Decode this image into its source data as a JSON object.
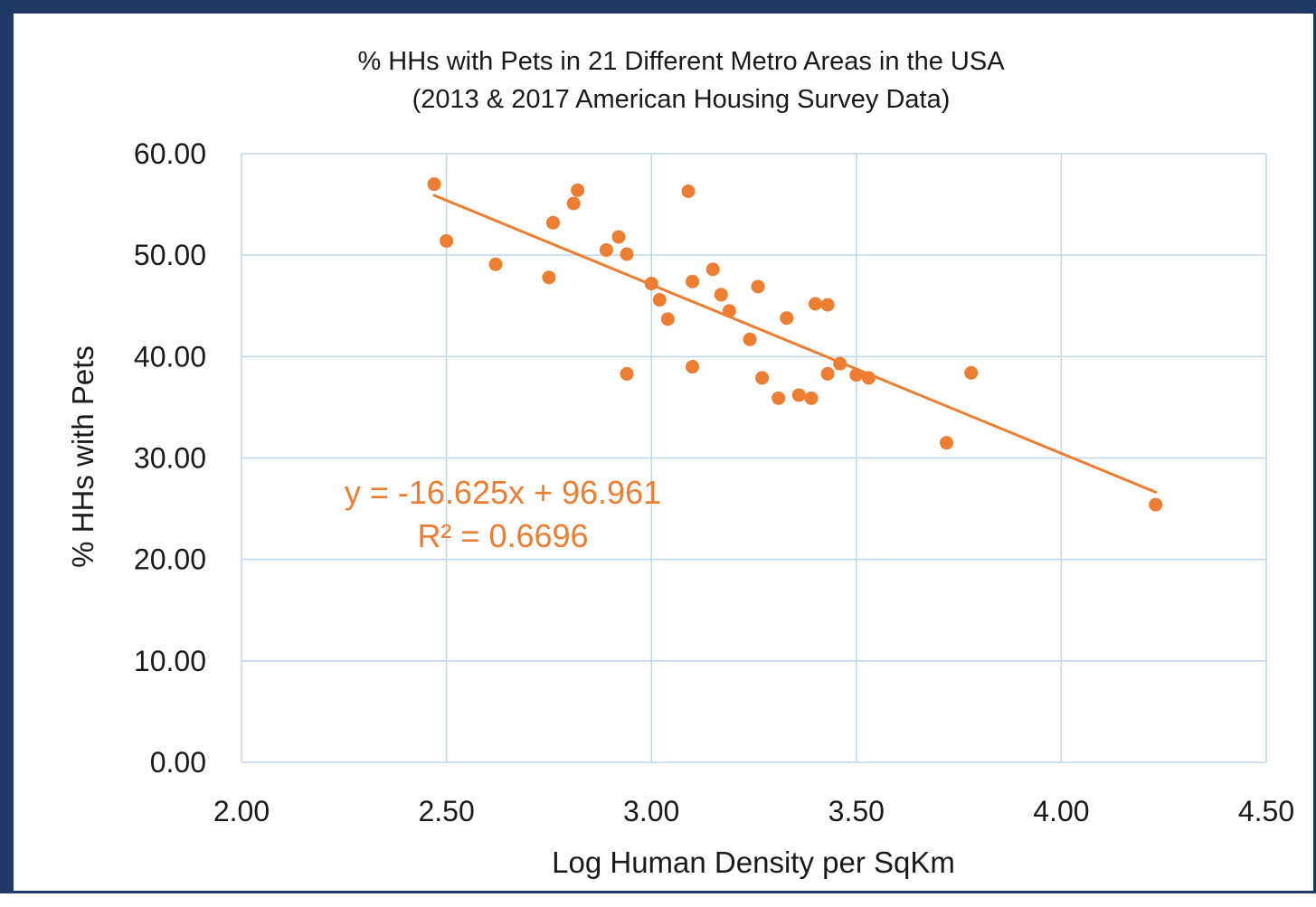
{
  "chart_data": {
    "type": "scatter",
    "title": "% HHs with Pets in 21 Different Metro Areas in the USA",
    "subtitle": "(2013 & 2017 American Housing Survey Data)",
    "xlabel": "Log Human Density per SqKm",
    "ylabel": "% HHs with Pets",
    "xlim": [
      2.0,
      4.5
    ],
    "ylim": [
      0.0,
      60.0
    ],
    "x_ticks": [
      "2.00",
      "2.50",
      "3.00",
      "3.50",
      "4.00",
      "4.50"
    ],
    "y_ticks": [
      "0.00",
      "10.00",
      "20.00",
      "30.00",
      "40.00",
      "50.00",
      "60.00"
    ],
    "grid": true,
    "legend": "none",
    "colors": {
      "points": "#ed7d31",
      "trendline": "#ed7d31",
      "grid": "#bdd7ee",
      "frame": "#1f3864"
    },
    "series": [
      {
        "points": [
          [
            2.47,
            57.0
          ],
          [
            2.5,
            51.4
          ],
          [
            2.62,
            49.1
          ],
          [
            2.75,
            47.8
          ],
          [
            2.76,
            53.2
          ],
          [
            2.81,
            55.1
          ],
          [
            2.82,
            56.4
          ],
          [
            2.89,
            50.5
          ],
          [
            2.92,
            51.8
          ],
          [
            2.94,
            50.1
          ],
          [
            2.94,
            38.3
          ],
          [
            3.0,
            47.2
          ],
          [
            3.02,
            45.6
          ],
          [
            3.04,
            43.7
          ],
          [
            3.09,
            56.3
          ],
          [
            3.1,
            47.4
          ],
          [
            3.1,
            39.0
          ],
          [
            3.15,
            48.6
          ],
          [
            3.17,
            46.1
          ],
          [
            3.19,
            44.5
          ],
          [
            3.24,
            41.7
          ],
          [
            3.26,
            46.9
          ],
          [
            3.27,
            37.9
          ],
          [
            3.31,
            35.9
          ],
          [
            3.33,
            43.8
          ],
          [
            3.36,
            36.2
          ],
          [
            3.39,
            35.9
          ],
          [
            3.4,
            45.2
          ],
          [
            3.43,
            45.1
          ],
          [
            3.43,
            38.3
          ],
          [
            3.46,
            39.3
          ],
          [
            3.5,
            38.2
          ],
          [
            3.53,
            37.9
          ],
          [
            3.72,
            31.5
          ],
          [
            3.78,
            38.4
          ],
          [
            4.23,
            25.4
          ]
        ]
      }
    ],
    "trendline": {
      "slope": -16.625,
      "intercept": 96.961,
      "x_range": [
        2.47,
        4.23
      ],
      "equation": "y = -16.625x + 96.961",
      "r_squared": "R² = 0.6696"
    }
  }
}
